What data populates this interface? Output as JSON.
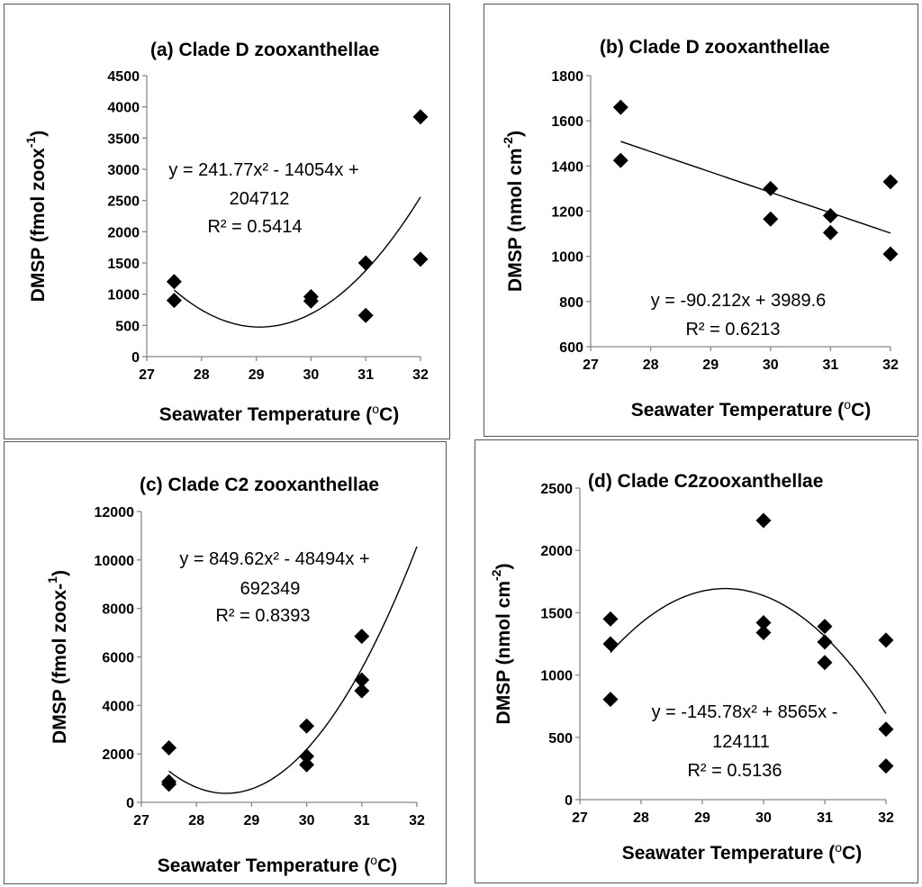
{
  "figure": {
    "xlabel_text": "Seawater Temperature (",
    "xlabel_sup": "o",
    "xlabel_end": "C)"
  },
  "chart_data": [
    {
      "id": "a",
      "type": "scatter",
      "title": "(a) Clade D zooxanthellae",
      "xlabel": "Seawater Temperature (oC)",
      "ylabel_text": "DMSP (fmol zoox",
      "ylabel_sup": "-1",
      "ylabel_end": ")",
      "xlim": [
        27,
        32
      ],
      "xticks": [
        27,
        28,
        29,
        30,
        31,
        32
      ],
      "ylim": [
        0,
        4500
      ],
      "yticks": [
        0,
        500,
        1000,
        1500,
        2000,
        2500,
        3000,
        3500,
        4000,
        4500
      ],
      "points": [
        [
          27.5,
          1200
        ],
        [
          27.5,
          900
        ],
        [
          30,
          960
        ],
        [
          30,
          890
        ],
        [
          31,
          1500
        ],
        [
          31,
          660
        ],
        [
          32,
          3840
        ],
        [
          32,
          1560
        ]
      ],
      "fit": {
        "kind": "poly2",
        "coef": [
          241.77,
          -14054,
          204712
        ],
        "range": [
          27.5,
          32
        ]
      },
      "equation_line1": "y = 241.77x² - 14054x +",
      "equation_line2": "204712",
      "r2": "R² = 0.5414"
    },
    {
      "id": "b",
      "type": "scatter",
      "title": "(b) Clade D zooxanthellae",
      "xlabel": "Seawater Temperature (oC)",
      "ylabel_text": "DMSP (nmol cm",
      "ylabel_sup": "-2",
      "ylabel_end": ")",
      "xlim": [
        27,
        32
      ],
      "xticks": [
        27,
        28,
        29,
        30,
        31,
        32
      ],
      "ylim": [
        600,
        1800
      ],
      "yticks": [
        600,
        800,
        1000,
        1200,
        1400,
        1600,
        1800
      ],
      "points": [
        [
          27.5,
          1660
        ],
        [
          27.5,
          1425
        ],
        [
          30,
          1300
        ],
        [
          30,
          1165
        ],
        [
          31,
          1180
        ],
        [
          31,
          1105
        ],
        [
          32,
          1330
        ],
        [
          32,
          1010
        ]
      ],
      "fit": {
        "kind": "linear",
        "coef": [
          -90.212,
          3989.6
        ],
        "range": [
          27.5,
          32
        ]
      },
      "equation_line1": "y = -90.212x + 3989.6",
      "equation_line2": "",
      "r2": "R² = 0.6213"
    },
    {
      "id": "c",
      "type": "scatter",
      "title": "(c) Clade C2 zooxanthellae",
      "xlabel": "Seawater Temperature (oC)",
      "ylabel_text": "DMSP (fmol zoox-",
      "ylabel_sup": "1",
      "ylabel_end": ")",
      "xlim": [
        27,
        32
      ],
      "xticks": [
        27,
        28,
        29,
        30,
        31,
        32
      ],
      "ylim": [
        0,
        12000
      ],
      "yticks": [
        0,
        2000,
        4000,
        6000,
        8000,
        10000,
        12000
      ],
      "points": [
        [
          27.5,
          2250
        ],
        [
          27.5,
          850
        ],
        [
          27.5,
          750
        ],
        [
          30,
          3150
        ],
        [
          30,
          1900
        ],
        [
          30,
          1550
        ],
        [
          31,
          6850
        ],
        [
          31,
          5050
        ],
        [
          31,
          4600
        ]
      ],
      "fit": {
        "kind": "poly2",
        "coef": [
          849.62,
          -48494,
          692349
        ],
        "range": [
          27.5,
          32
        ]
      },
      "equation_line1": "y = 849.62x² - 48494x +",
      "equation_line2": "692349",
      "r2": "R² = 0.8393"
    },
    {
      "id": "d",
      "type": "scatter",
      "title": "(d) Clade C2zooxanthellae",
      "xlabel": "Seawater Temperature (oC)",
      "ylabel_text": "DMSP (nmol cm",
      "ylabel_sup": "-2",
      "ylabel_end": ")",
      "xlim": [
        27,
        32
      ],
      "xticks": [
        27,
        28,
        29,
        30,
        31,
        32
      ],
      "ylim": [
        0,
        2500
      ],
      "yticks": [
        0,
        500,
        1000,
        1500,
        2000,
        2500
      ],
      "points": [
        [
          27.5,
          1450
        ],
        [
          27.5,
          1250
        ],
        [
          27.5,
          805
        ],
        [
          30,
          2240
        ],
        [
          30,
          1420
        ],
        [
          30,
          1340
        ],
        [
          31,
          1390
        ],
        [
          31,
          1265
        ],
        [
          31,
          1100
        ],
        [
          32,
          1280
        ],
        [
          32,
          565
        ],
        [
          32,
          270
        ]
      ],
      "fit": {
        "kind": "poly2",
        "coef": [
          -145.78,
          8565,
          -124111
        ],
        "range": [
          27.5,
          32
        ]
      },
      "equation_line1": "y = -145.78x² + 8565x -",
      "equation_line2": "124111",
      "r2": "R² = 0.5136"
    }
  ]
}
